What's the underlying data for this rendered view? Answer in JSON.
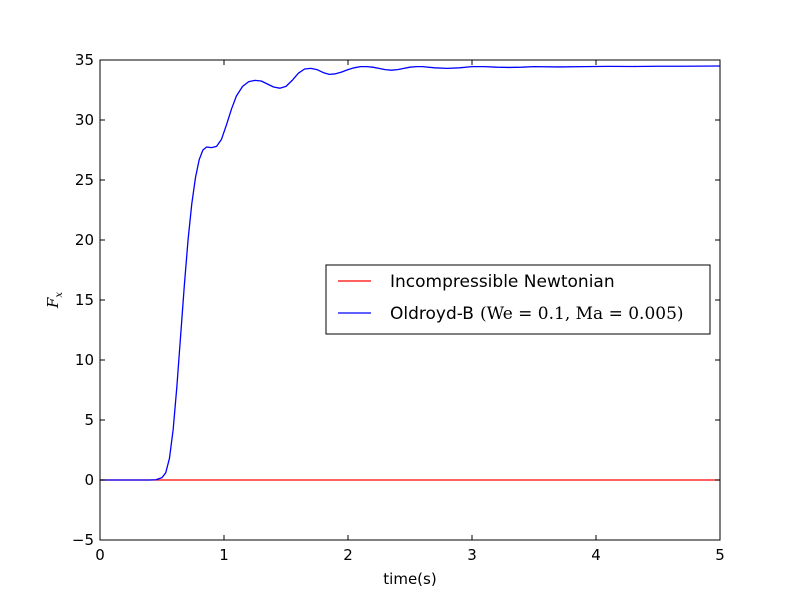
{
  "chart_data": {
    "type": "line",
    "xlabel": "time(s)",
    "ylabel": "F",
    "ylabel_subscript": "x",
    "xlim": [
      0,
      5
    ],
    "ylim": [
      -5,
      35
    ],
    "x_ticks": [
      0,
      1,
      2,
      3,
      4,
      5
    ],
    "y_ticks": [
      -5,
      0,
      5,
      10,
      15,
      20,
      25,
      30,
      35
    ],
    "x_tick_labels": [
      "0",
      "1",
      "2",
      "3",
      "4",
      "5"
    ],
    "y_tick_labels": [
      "−5",
      "0",
      "5",
      "10",
      "15",
      "20",
      "25",
      "30",
      "35"
    ],
    "grid": false,
    "legend_position": "center-right",
    "series": [
      {
        "name": "Incompressible Newtonian",
        "color": "#ff0000",
        "points": [
          [
            0,
            0
          ],
          [
            5,
            0
          ]
        ]
      },
      {
        "name": "Oldroyd-B",
        "name_math": "(We = 0.1, Ma = 0.005)",
        "color": "#0000ff",
        "points": [
          [
            0,
            0
          ],
          [
            0.4,
            0
          ],
          [
            0.45,
            0.02
          ],
          [
            0.5,
            0.2
          ],
          [
            0.53,
            0.6
          ],
          [
            0.56,
            1.8
          ],
          [
            0.59,
            4.2
          ],
          [
            0.62,
            7.8
          ],
          [
            0.65,
            12.0
          ],
          [
            0.68,
            16.2
          ],
          [
            0.71,
            20.0
          ],
          [
            0.74,
            23.0
          ],
          [
            0.77,
            25.2
          ],
          [
            0.8,
            26.7
          ],
          [
            0.83,
            27.5
          ],
          [
            0.86,
            27.75
          ],
          [
            0.9,
            27.7
          ],
          [
            0.94,
            27.8
          ],
          [
            0.98,
            28.4
          ],
          [
            1.02,
            29.6
          ],
          [
            1.06,
            30.9
          ],
          [
            1.1,
            32.0
          ],
          [
            1.15,
            32.8
          ],
          [
            1.2,
            33.2
          ],
          [
            1.25,
            33.3
          ],
          [
            1.3,
            33.25
          ],
          [
            1.35,
            33.0
          ],
          [
            1.4,
            32.75
          ],
          [
            1.45,
            32.65
          ],
          [
            1.5,
            32.8
          ],
          [
            1.55,
            33.3
          ],
          [
            1.6,
            33.9
          ],
          [
            1.65,
            34.25
          ],
          [
            1.7,
            34.3
          ],
          [
            1.75,
            34.2
          ],
          [
            1.8,
            33.95
          ],
          [
            1.85,
            33.8
          ],
          [
            1.9,
            33.85
          ],
          [
            1.95,
            34.0
          ],
          [
            2.0,
            34.2
          ],
          [
            2.05,
            34.35
          ],
          [
            2.1,
            34.45
          ],
          [
            2.15,
            34.45
          ],
          [
            2.2,
            34.4
          ],
          [
            2.25,
            34.3
          ],
          [
            2.3,
            34.2
          ],
          [
            2.35,
            34.15
          ],
          [
            2.4,
            34.2
          ],
          [
            2.45,
            34.3
          ],
          [
            2.5,
            34.4
          ],
          [
            2.55,
            34.45
          ],
          [
            2.6,
            34.45
          ],
          [
            2.7,
            34.35
          ],
          [
            2.8,
            34.3
          ],
          [
            2.9,
            34.35
          ],
          [
            3.0,
            34.45
          ],
          [
            3.1,
            34.45
          ],
          [
            3.2,
            34.4
          ],
          [
            3.3,
            34.38
          ],
          [
            3.4,
            34.4
          ],
          [
            3.5,
            34.45
          ],
          [
            3.7,
            34.42
          ],
          [
            3.9,
            34.45
          ],
          [
            4.1,
            34.47
          ],
          [
            4.3,
            34.46
          ],
          [
            4.5,
            34.48
          ],
          [
            4.7,
            34.48
          ],
          [
            5.0,
            34.5
          ]
        ]
      }
    ]
  }
}
